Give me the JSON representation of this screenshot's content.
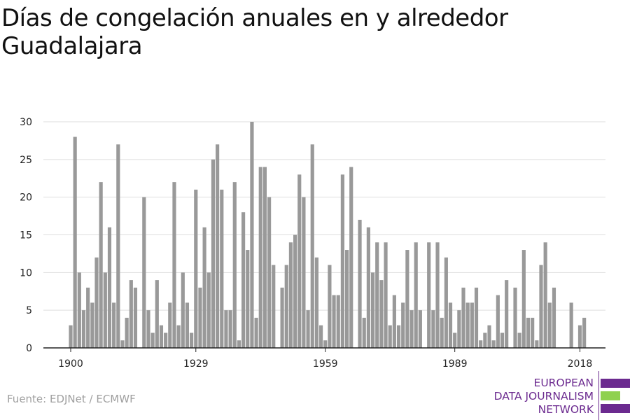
{
  "title": "Días de congelación anuales en y alrededor Guadalajara",
  "source": "Fuente: EDJNet / ECMWF",
  "logo": {
    "line1": "EUROPEAN",
    "line2": "DATA JOURNALISM",
    "line3": "NETWORK",
    "colors": {
      "purple": "#6b2a8f",
      "green": "#8fd14f"
    }
  },
  "colors": {
    "bar": "#999999",
    "grid": "#dddddd",
    "axis": "#222222"
  },
  "chart_data": {
    "type": "bar",
    "x_start": 1900,
    "x_end": 2021,
    "x_ticks": [
      1900,
      1929,
      1959,
      1989,
      2018
    ],
    "ylim": [
      0,
      30
    ],
    "y_ticks": [
      0,
      5,
      10,
      15,
      20,
      25,
      30
    ],
    "grid": true,
    "values": [
      3,
      28,
      10,
      5,
      8,
      6,
      12,
      22,
      10,
      16,
      6,
      27,
      1,
      4,
      9,
      8,
      0,
      20,
      5,
      2,
      9,
      3,
      2,
      6,
      22,
      3,
      10,
      6,
      2,
      21,
      8,
      16,
      10,
      25,
      27,
      21,
      5,
      5,
      22,
      1,
      18,
      13,
      30,
      4,
      24,
      24,
      20,
      11,
      0,
      8,
      11,
      14,
      15,
      23,
      20,
      5,
      27,
      12,
      3,
      1,
      11,
      7,
      7,
      23,
      13,
      24,
      0,
      17,
      4,
      16,
      10,
      14,
      9,
      14,
      3,
      7,
      3,
      6,
      13,
      5,
      14,
      5,
      0,
      14,
      5,
      14,
      4,
      12,
      6,
      2,
      5,
      8,
      6,
      6,
      8,
      1,
      2,
      3,
      1,
      7,
      2,
      9,
      0,
      8,
      2,
      13,
      4,
      4,
      1,
      11,
      14,
      6,
      8,
      0,
      0,
      0,
      6,
      0,
      3,
      4
    ]
  }
}
